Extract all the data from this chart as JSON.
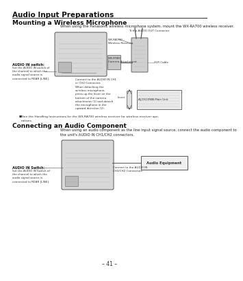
{
  "bg_color": "#f5f5f5",
  "page_bg": "#ffffff",
  "title": "Audio Input Preparations",
  "section1": "Mounting a Wireless Microphone",
  "section1_desc": "When using the Panasonic wireless microphone system, mount the WX-RA700 wireless receiver.",
  "section2": "Connecting an Audio Component",
  "section2_desc": "When using an audio component as the line input signal source, connect the audio component to\nthe unit's AUDIO IN CH1/CH2 connectors.",
  "note": "■See the Handling Instructions for the WX-RA700 wireless receiver for wireless receiver ope-\n  rations.",
  "page_num": "– 41 –",
  "labels_top": {
    "connector_label": "To the AUDIO OUT Connector",
    "wx_ra700": "WX-RA700\nWireless Receiver",
    "wx_r980": "WX-R980\nCamera Attachment",
    "xlr_cable": "XLR Cable",
    "audio_in_switch": "AUDIO IN switch:",
    "audio_in_switch_desc": "Set the AUDIO IN switch of\nthe channel to which the\naudio signal source is\nconnected to REAR [LINE].",
    "connect_ch": "Connect to the AUDIO IN CH1\nor CH2 Connector.",
    "detach_desc": "When detaching the\nwireless microphone,\npress up the lever on the\nbottom of the camera\nattachment (1) and detach\nthe microphone in the\nupward direction (2).",
    "lever": "Lever",
    "aj_main": "AJ-D610WA Main Unit"
  },
  "labels_bottom": {
    "audio_in_switch": "AUDIO IN Switch:",
    "audio_in_switch_desc": "Set the AUDIO IN Switch of\nthe channel to which the\naudio signal source is\nconnected to REAR [LINE].",
    "connect_ch": "Connect to the AUDIO IN\nCH1/CH2 Connectors.",
    "audio_equipment": "Audio Equipment"
  }
}
